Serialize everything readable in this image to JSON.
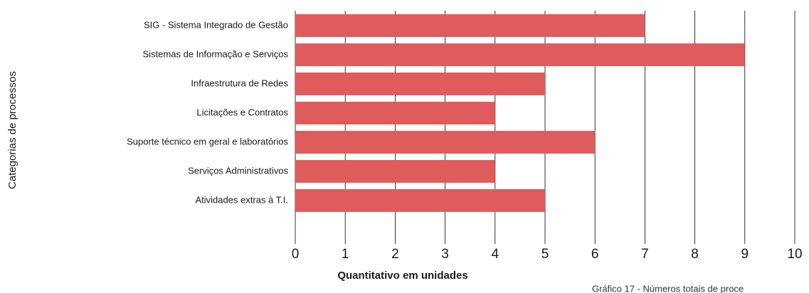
{
  "chart_data": {
    "type": "barh",
    "categories": [
      "SIG - Sistema Integrado de Gestão",
      "Sistemas de Informação e Serviços",
      "Infraestrutura de Redes",
      "Licitações e Contratos",
      "Suporte técnico em geral e laboratórios",
      "Serviços Administrativos",
      "Atividades extras à T.I.",
      null
    ],
    "values": [
      7,
      9,
      5,
      4,
      6,
      4,
      5,
      null
    ],
    "color": "#e05c5c",
    "xlim": [
      0,
      10
    ],
    "xticks": [
      0,
      1,
      2,
      3,
      4,
      5,
      6,
      7,
      8,
      9,
      10
    ],
    "grid": true,
    "xlabel": "Quantitativo em unidades",
    "ylabel": "Categorias de processos",
    "caption": "Gráfico 17 - Números totais de proce"
  }
}
